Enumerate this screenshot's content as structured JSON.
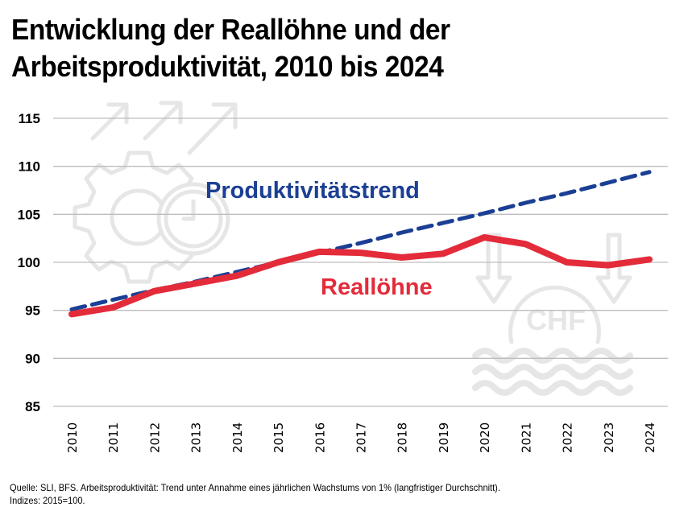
{
  "title": "Entwicklung der Reallöhne und der Arbeitsproduktivität, 2010 bis 2024",
  "footnote": {
    "line1": "Quelle: SLI, BFS. Arbeitsproduktivität: Trend unter Annahme eines jährlichen Wachstums von 1% (langfristiger Durchschnitt).",
    "line2": "Indizes: 2015=100."
  },
  "background_icons": [
    "growth-gear-clock-icon",
    "chf-coin-down-arrows-icon"
  ],
  "chart_data": {
    "type": "line",
    "title": "Entwicklung der Reallöhne und der Arbeitsproduktivität, 2010 bis 2024",
    "xlabel": "",
    "ylabel": "",
    "x": [
      "2010",
      "2011",
      "2012",
      "2013",
      "2014",
      "2015",
      "2016",
      "2017",
      "2018",
      "2019",
      "2020",
      "2021",
      "2022",
      "2023",
      "2024"
    ],
    "ylim": [
      85,
      115
    ],
    "yticks": [
      "85",
      "90",
      "95",
      "100",
      "105",
      "110",
      "115"
    ],
    "ytick_values": [
      85,
      90,
      95,
      100,
      105,
      110,
      115
    ],
    "grid": true,
    "legend": "none (inline labels)",
    "series": [
      {
        "name": "Produktivitätstrend",
        "label": "Produktivitätstrend",
        "color": "#1B3F94",
        "style": "dashed",
        "values": [
          95.1,
          96.1,
          97.1,
          98.0,
          99.0,
          100.0,
          101.0,
          102.0,
          103.1,
          104.1,
          105.1,
          106.2,
          107.2,
          108.3,
          109.4
        ]
      },
      {
        "name": "Reallöhne",
        "label": "Reallöhne",
        "color": "#E32B3A",
        "style": "solid",
        "values": [
          94.6,
          95.3,
          97.0,
          97.8,
          98.6,
          100.0,
          101.1,
          101.0,
          100.5,
          100.9,
          102.6,
          101.9,
          100.0,
          99.7,
          100.3
        ]
      }
    ],
    "annotations": [
      {
        "text": "Produktivitätstrend",
        "color": "#1B3F94",
        "anchor_x": "2012.6",
        "anchor_y": 107.5
      },
      {
        "text": "Reallöhne",
        "color": "#E32B3A",
        "anchor_x": "2016.1",
        "anchor_y": 97.5
      }
    ]
  }
}
